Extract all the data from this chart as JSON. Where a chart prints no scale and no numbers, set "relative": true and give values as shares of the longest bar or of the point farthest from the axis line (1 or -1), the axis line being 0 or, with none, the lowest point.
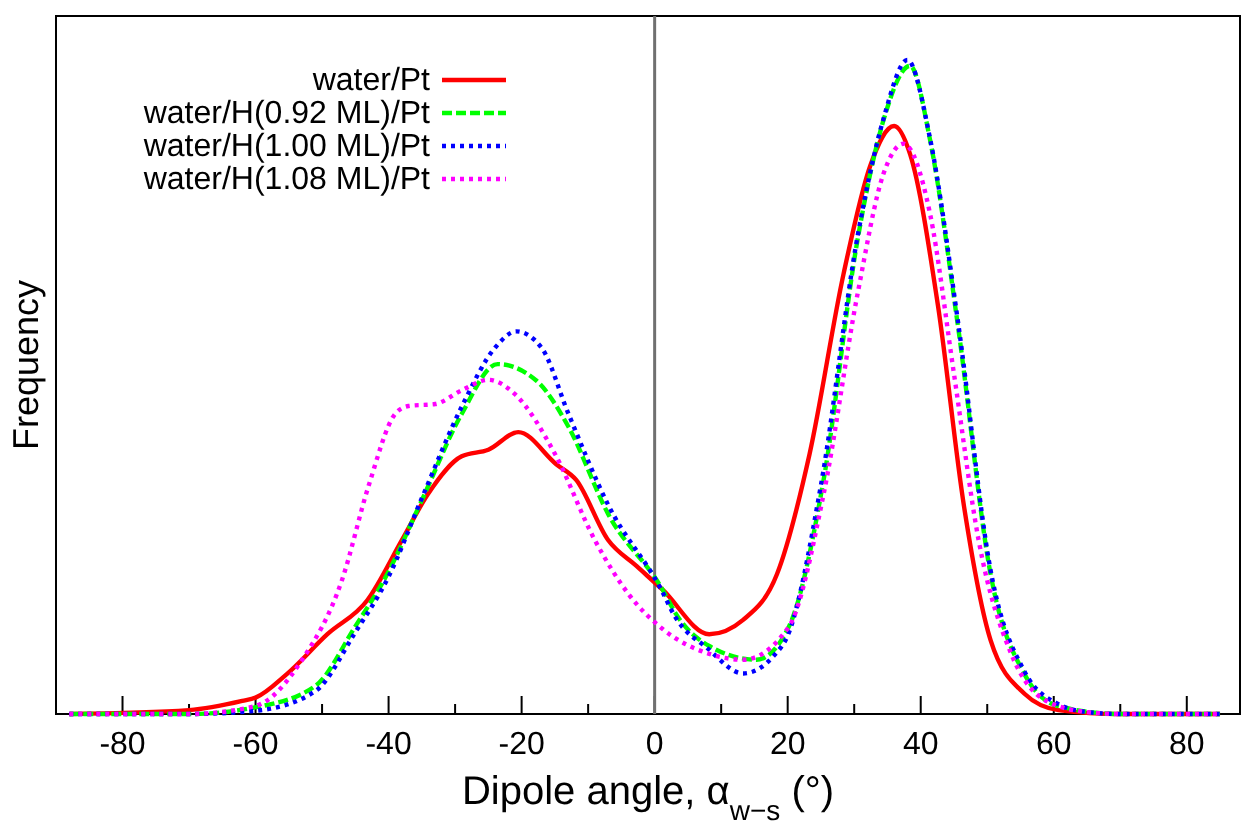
{
  "chart_data": {
    "type": "line",
    "relative": true,
    "xlabel": "Dipole angle, α$_{w−s}$ (°)",
    "ylabel": "Frequency",
    "xlim": [
      -90,
      88
    ],
    "xticks": [
      -80,
      {
        "value": -70,
        "label": null
      },
      -60,
      {
        "value": -50,
        "label": null
      },
      -40,
      {
        "value": -30,
        "label": null
      },
      -20,
      {
        "value": -10,
        "label": null
      },
      0,
      {
        "value": 10,
        "label": null
      },
      20,
      {
        "value": 30,
        "label": null
      },
      40,
      {
        "value": 50,
        "label": null
      },
      60,
      {
        "value": 70,
        "label": null
      },
      80
    ],
    "legend": "top left",
    "ref_lines": [
      {
        "axis": "x",
        "value": 0,
        "color": "#707070"
      }
    ],
    "series": [
      {
        "name": "water/Pt",
        "color": "#ff0000",
        "line_style": "solid",
        "x": [
          -88,
          -70,
          -62,
          -60,
          -55.3,
          -49.2,
          -43.2,
          -38,
          -34.1,
          -29,
          -25,
          -20.5,
          -14.8,
          -11.8,
          -7,
          -2.7,
          1.2,
          8.2,
          13.3,
          18.4,
          23.3,
          28.4,
          32.4,
          36,
          38.4,
          42.6,
          46.5,
          50.5,
          55.6,
          60.7,
          70,
          85
        ],
        "values": [
          0,
          0.006,
          0.02,
          0.025,
          0.061,
          0.122,
          0.174,
          0.266,
          0.336,
          0.394,
          0.404,
          0.431,
          0.382,
          0.358,
          0.266,
          0.226,
          0.19,
          0.122,
          0.144,
          0.214,
          0.398,
          0.673,
          0.838,
          0.899,
          0.856,
          0.624,
          0.318,
          0.113,
          0.031,
          0.006,
          0,
          0
        ]
      },
      {
        "name": "water/H(0.92 ML)/Pt",
        "color": "#00ff00",
        "line_style": "dashed",
        "x": [
          -88,
          -70,
          -60.1,
          -51,
          -45,
          -40.2,
          -35,
          -29,
          -23.6,
          -17.8,
          -13,
          -7,
          1.2,
          3.2,
          8.2,
          15.3,
          20.2,
          25.4,
          30.5,
          34.4,
          38.4,
          41.4,
          45.6,
          50.5,
          55.6,
          60.7,
          70,
          85
        ],
        "values": [
          0,
          0,
          0.01,
          0.043,
          0.134,
          0.214,
          0.327,
          0.459,
          0.535,
          0.51,
          0.44,
          0.306,
          0.19,
          0.153,
          0.104,
          0.083,
          0.134,
          0.358,
          0.725,
          0.908,
          0.991,
          0.878,
          0.593,
          0.214,
          0.061,
          0.012,
          0,
          0
        ]
      },
      {
        "name": "water/H(1.00 ML)/Pt",
        "color": "#0000ff",
        "line_style": "dotted",
        "x": [
          -88,
          -70,
          -60,
          -51,
          -45,
          -40,
          -35,
          -29,
          -24,
          -20.8,
          -17,
          -13,
          -7,
          1,
          3,
          8,
          13.3,
          18,
          20,
          25,
          30.5,
          34.4,
          38,
          41.4,
          45.6,
          50.5,
          55.6,
          60.7,
          65,
          70,
          85
        ],
        "values": [
          0,
          0,
          0.005,
          0.035,
          0.125,
          0.21,
          0.33,
          0.47,
          0.56,
          0.585,
          0.56,
          0.46,
          0.32,
          0.19,
          0.15,
          0.1,
          0.062,
          0.09,
          0.12,
          0.35,
          0.73,
          0.91,
          1,
          0.88,
          0.6,
          0.22,
          0.065,
          0.015,
          0.003,
          0,
          0
        ]
      },
      {
        "name": "water/H(1.08 ML)/Pt",
        "color": "#ff00ff",
        "line_style": "dotted",
        "x": [
          -88,
          -70,
          -60.1,
          -53,
          -47,
          -43,
          -39,
          -37,
          -33,
          -29,
          -25,
          -21,
          -15,
          -9,
          -3.9,
          1.2,
          8.2,
          13.3,
          20.2,
          25.4,
          30.5,
          34.4,
          37.4,
          41.4,
          45,
          48.7,
          53.6,
          58.7,
          65,
          70,
          85
        ],
        "values": [
          0,
          0,
          0.012,
          0.083,
          0.205,
          0.349,
          0.459,
          0.471,
          0.474,
          0.495,
          0.511,
          0.489,
          0.398,
          0.266,
          0.183,
          0.13,
          0.092,
          0.083,
          0.134,
          0.336,
          0.642,
          0.826,
          0.872,
          0.765,
          0.52,
          0.266,
          0.092,
          0.021,
          0.003,
          0,
          0
        ]
      }
    ]
  }
}
